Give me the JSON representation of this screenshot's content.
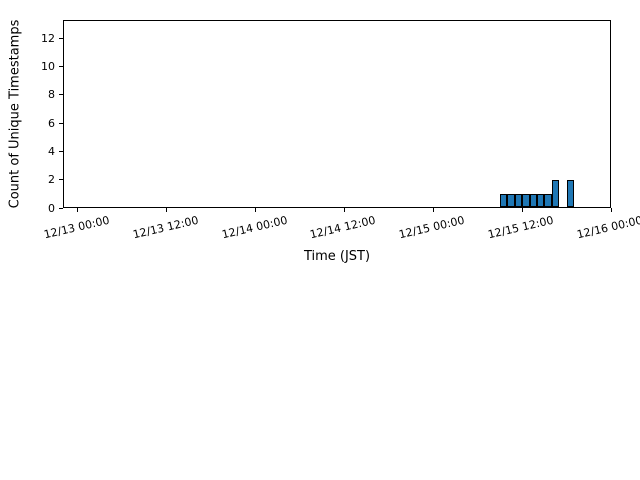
{
  "figure": {
    "background": "#ffffff"
  },
  "chart_data": {
    "type": "bar",
    "title": "",
    "xlabel": "Time (JST)",
    "ylabel": "Count of Unique Timestamps",
    "x_tick_labels": [
      "12/13 00:00",
      "12/13 12:00",
      "12/14 00:00",
      "12/14 12:00",
      "12/15 00:00",
      "12/15 12:00",
      "12/16 00:00"
    ],
    "y_ticks": [
      0,
      2,
      4,
      6,
      8,
      10,
      12
    ],
    "ylim": [
      0,
      13.3
    ],
    "xlim": [
      "12/12 22:00",
      "12/16 00:00"
    ],
    "grid": false,
    "legend": null,
    "bin_width_hours": 1,
    "bar_color": "#1f77b4",
    "bar_edge_color": "#000000",
    "bars": [
      {
        "time": "12/15 09:00",
        "value": 1
      },
      {
        "time": "12/15 10:00",
        "value": 1
      },
      {
        "time": "12/15 11:00",
        "value": 1
      },
      {
        "time": "12/15 12:00",
        "value": 1
      },
      {
        "time": "12/15 13:00",
        "value": 1
      },
      {
        "time": "12/15 14:00",
        "value": 1
      },
      {
        "time": "12/15 15:00",
        "value": 1
      },
      {
        "time": "12/15 16:00",
        "value": 2
      },
      {
        "time": "12/15 17:00",
        "value": 0
      },
      {
        "time": "12/15 18:00",
        "value": 2
      }
    ]
  }
}
